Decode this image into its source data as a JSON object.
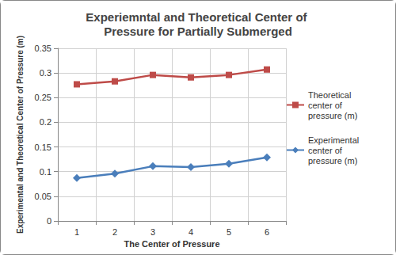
{
  "chart_data": {
    "type": "line",
    "title": "Experiemntal and Theoretical Center of Pressure for Partially Submerged",
    "x_label": "The Center of Pressure",
    "y_label": "Experimental and Theoretical Center of Pressure (m)",
    "categories": [
      "1",
      "2",
      "3",
      "4",
      "5",
      "6"
    ],
    "series": [
      {
        "name": "Theoretical center of pressure (m)",
        "color": "#be4b48",
        "marker": "square",
        "values": [
          0.277,
          0.283,
          0.296,
          0.291,
          0.296,
          0.307
        ]
      },
      {
        "name": "Experimental center of pressure (m)",
        "color": "#4a7ebb",
        "marker": "diamond",
        "values": [
          0.087,
          0.096,
          0.111,
          0.109,
          0.116,
          0.129
        ]
      }
    ],
    "ylim": [
      0,
      0.35
    ],
    "yticks": [
      0,
      0.05,
      0.1,
      0.15,
      0.2,
      0.25,
      0.3,
      0.35
    ],
    "grid": true,
    "legend": "right"
  }
}
